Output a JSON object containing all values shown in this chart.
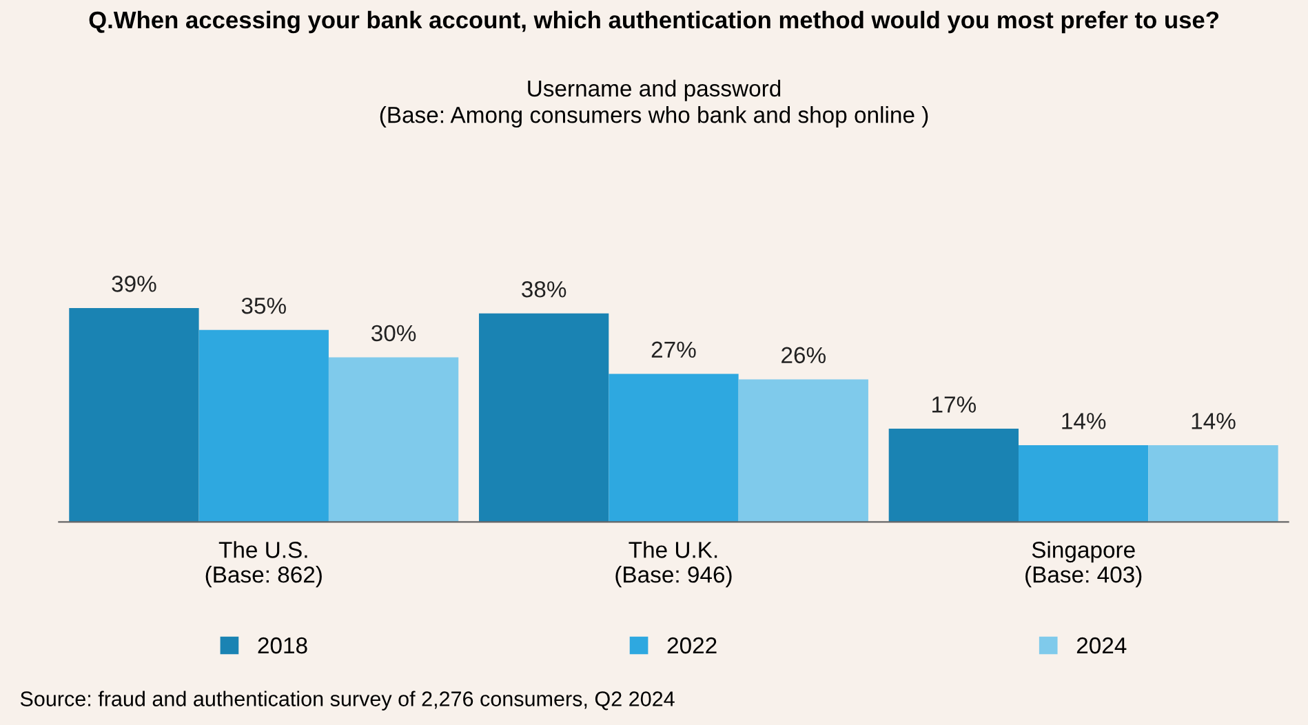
{
  "chart_data": {
    "type": "bar",
    "title": "Q.When accessing your bank account, which authentication method would you most prefer to use?",
    "subtitle": "Username and password\n(Base: Among consumers who bank and shop online )",
    "categories": [
      "The U.S.\n(Base: 862)",
      "The U.K.\n(Base: 946)",
      "Singapore\n(Base: 403)"
    ],
    "series": [
      {
        "name": "2018",
        "color": "#1a83b3",
        "values": [
          39,
          38,
          17
        ],
        "value_labels": [
          "39%",
          "38%",
          "17%"
        ]
      },
      {
        "name": "2022",
        "color": "#2ea8e0",
        "values": [
          35,
          27,
          14
        ],
        "value_labels": [
          "35%",
          "27%",
          "14%"
        ]
      },
      {
        "name": "2024",
        "color": "#7fcaeb",
        "values": [
          30,
          26,
          14
        ],
        "value_labels": [
          "30%",
          "26%",
          "14%"
        ]
      }
    ],
    "legend": "bottom",
    "grid": false,
    "annotations": [
      "Source: fraud and authentication survey of 2,276 consumers, Q2 2024"
    ]
  }
}
